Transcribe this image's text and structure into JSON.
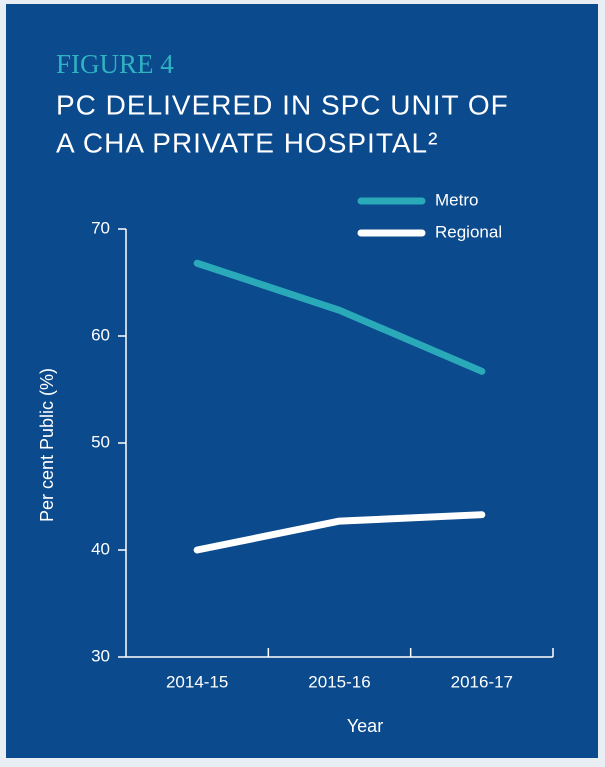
{
  "chart_data": {
    "type": "line",
    "figure_label": "FIGURE 4",
    "title": [
      "PC DELIVERED IN SPC UNIT OF",
      "A CHA PRIVATE HOSPITAL²"
    ],
    "y_label": "Per cent Public (%)",
    "x_label": "Year",
    "categories": [
      "2014-15",
      "2015-16",
      "2016-17"
    ],
    "series": [
      {
        "name": "Metro",
        "color": "#2aa9b9",
        "values": [
          66.8,
          62.4,
          56.7
        ]
      },
      {
        "name": "Regional",
        "color": "#ffffff",
        "values": [
          40.0,
          42.7,
          43.3
        ]
      }
    ],
    "ylim": [
      30,
      70
    ],
    "yticks": [
      30,
      40,
      50,
      60,
      70
    ],
    "legend": "upper right"
  }
}
